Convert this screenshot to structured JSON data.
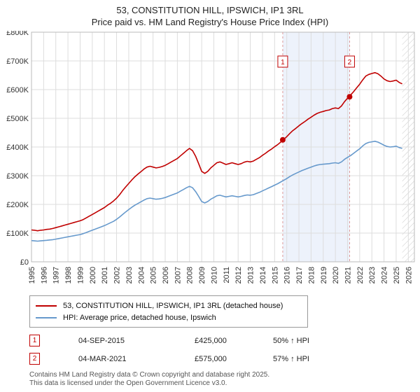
{
  "title": "53, CONSTITUTION HILL, IPSWICH, IP1 3RL",
  "subtitle": "Price paid vs. HM Land Registry's House Price Index (HPI)",
  "chart_data": {
    "type": "line",
    "values_unit": "GBP_thousands",
    "xlim": [
      1995,
      2026.5
    ],
    "ylim": [
      0,
      800
    ],
    "x_ticks": [
      1995,
      1996,
      1997,
      1998,
      1999,
      2000,
      2001,
      2002,
      2003,
      2004,
      2005,
      2006,
      2007,
      2008,
      2009,
      2010,
      2011,
      2012,
      2013,
      2014,
      2015,
      2016,
      2017,
      2018,
      2019,
      2020,
      2021,
      2022,
      2023,
      2024,
      2025,
      2026
    ],
    "y_ticks": {
      "values": [
        0,
        100,
        200,
        300,
        400,
        500,
        600,
        700,
        800
      ],
      "labels": [
        "£0",
        "£100K",
        "£200K",
        "£300K",
        "£400K",
        "£500K",
        "£600K",
        "£700K",
        "£800K"
      ]
    },
    "colors": {
      "red": "#c00000",
      "blue": "#6699cc",
      "dashed": "#dd9999",
      "band": "#edf2fb",
      "hatch": "#c8c8c8"
    },
    "shaded_region": {
      "from": 2015.67,
      "to": 2021.17
    },
    "hatched_region": {
      "from": 2025.5,
      "to": 2026.5
    },
    "markers": [
      {
        "label": "1",
        "x": 2015.67,
        "value": 425
      },
      {
        "label": "2",
        "x": 2021.17,
        "value": 575
      }
    ],
    "series": [
      {
        "name": "53, CONSTITUTION HILL, IPSWICH, IP1 3RL (detached house)",
        "color": "#c00000",
        "x_start": 1995.0,
        "x_step": 0.25,
        "values": [
          111,
          110,
          108,
          110,
          111,
          113,
          114,
          116,
          119,
          122,
          125,
          128,
          131,
          134,
          137,
          140,
          143,
          147,
          153,
          159,
          165,
          171,
          177,
          183,
          189,
          197,
          204,
          212,
          222,
          234,
          248,
          261,
          273,
          285,
          296,
          305,
          314,
          323,
          330,
          333,
          330,
          327,
          329,
          332,
          336,
          342,
          348,
          354,
          360,
          369,
          378,
          387,
          395,
          387,
          368,
          342,
          315,
          308,
          315,
          327,
          336,
          345,
          348,
          344,
          339,
          342,
          345,
          342,
          339,
          342,
          347,
          350,
          348,
          351,
          357,
          363,
          371,
          378,
          386,
          393,
          401,
          408,
          417,
          426,
          436,
          447,
          457,
          465,
          474,
          482,
          489,
          497,
          504,
          511,
          517,
          521,
          524,
          527,
          529,
          534,
          536,
          534,
          543,
          558,
          570,
          581,
          593,
          606,
          619,
          634,
          647,
          653,
          656,
          659,
          655,
          647,
          637,
          631,
          628,
          630,
          633,
          625,
          620
        ]
      },
      {
        "name": "HPI: Average price, detached house, Ipswich",
        "color": "#6699cc",
        "x_start": 1995.0,
        "x_step": 0.25,
        "values": [
          74,
          73,
          72,
          73,
          74,
          75,
          76,
          77,
          79,
          81,
          83,
          85,
          87,
          89,
          91,
          93,
          95,
          98,
          102,
          106,
          110,
          114,
          118,
          122,
          126,
          131,
          136,
          141,
          148,
          156,
          165,
          174,
          182,
          190,
          197,
          203,
          209,
          215,
          220,
          222,
          220,
          218,
          219,
          221,
          224,
          228,
          232,
          236,
          240,
          246,
          252,
          258,
          263,
          258,
          245,
          228,
          210,
          205,
          210,
          218,
          224,
          230,
          232,
          229,
          226,
          228,
          230,
          228,
          226,
          228,
          231,
          233,
          232,
          234,
          238,
          242,
          247,
          252,
          257,
          262,
          267,
          272,
          278,
          284,
          290,
          297,
          303,
          308,
          313,
          318,
          322,
          326,
          330,
          334,
          337,
          339,
          340,
          341,
          342,
          344,
          345,
          343,
          348,
          357,
          364,
          370,
          378,
          386,
          394,
          404,
          412,
          416,
          418,
          420,
          417,
          412,
          406,
          402,
          400,
          401,
          403,
          398,
          395
        ]
      }
    ]
  },
  "legend": [
    {
      "label": "53, CONSTITUTION HILL, IPSWICH, IP1 3RL (detached house)"
    },
    {
      "label": "HPI: Average price, detached house, Ipswich"
    }
  ],
  "annotations": [
    {
      "num": "1",
      "date": "04-SEP-2015",
      "price": "£425,000",
      "hpi_delta": "50% ↑ HPI"
    },
    {
      "num": "2",
      "date": "04-MAR-2021",
      "price": "£575,000",
      "hpi_delta": "57% ↑ HPI"
    }
  ],
  "footer": {
    "line1": "Contains HM Land Registry data © Crown copyright and database right 2025.",
    "line2": "This data is licensed under the Open Government Licence v3.0."
  }
}
